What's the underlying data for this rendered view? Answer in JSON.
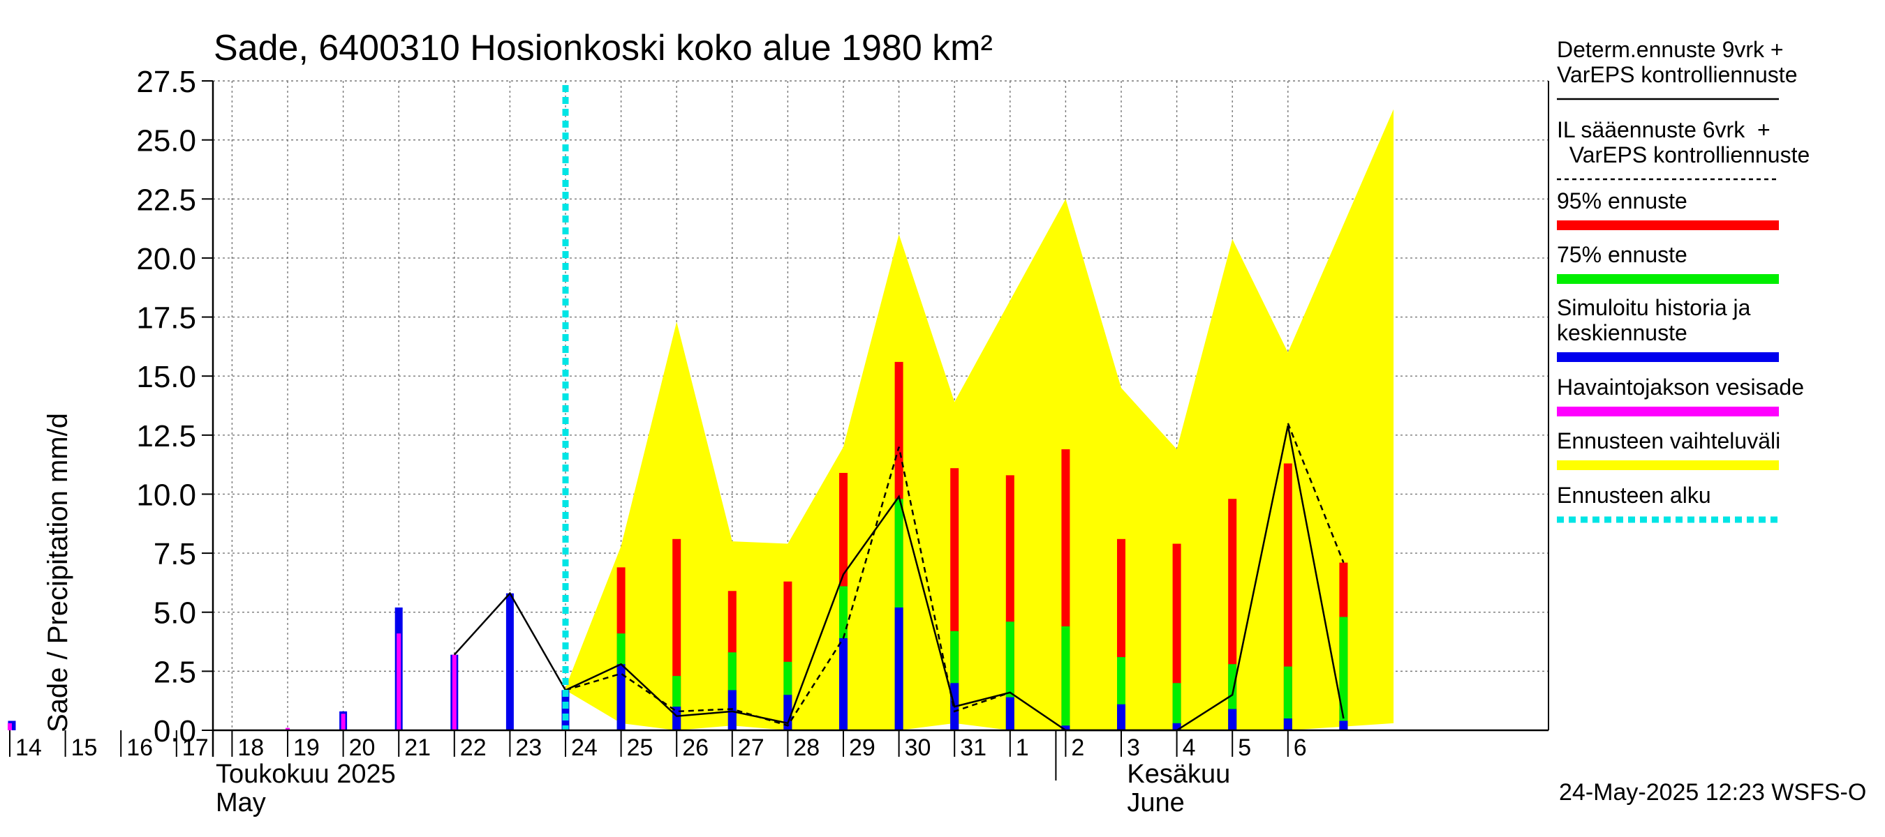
{
  "chart_data": {
    "type": "bar",
    "title": "Sade, 6400310 Hosionkoski koko alue 1980 km²",
    "ylabel": "Sade / Precipitation   mm/d",
    "ylim": [
      0,
      27.5
    ],
    "y_ticks": [
      "0.0",
      "2.5",
      "5.0",
      "7.5",
      "10.0",
      "12.5",
      "15.0",
      "17.5",
      "20.0",
      "22.5",
      "25.0",
      "27.5"
    ],
    "x_ticks": [
      "14",
      "15",
      "16",
      "17",
      "18",
      "19",
      "20",
      "21",
      "22",
      "23",
      "24",
      "25",
      "26",
      "27",
      "28",
      "29",
      "30",
      "31",
      "1",
      "2",
      "3",
      "4",
      "5",
      "6"
    ],
    "month_labels": [
      {
        "fi": "Toukokuu  2025",
        "en": "May",
        "at_day": 0
      },
      {
        "fi": "Kesäkuu",
        "en": "June",
        "at_day": 19
      }
    ],
    "grid": true,
    "forecast_start_day": 10,
    "timestamp": "24-May-2025 12:23 WSFS-O",
    "legend_position": "right",
    "legend": [
      {
        "label": "Determ.ennuste 9vrk +\nVarEPS kontrolliennuste",
        "color": "#000000",
        "style": "solid"
      },
      {
        "label": "IL sääennuste 6vrk  +\n  VarEPS kontrolliennuste",
        "color": "#000000",
        "style": "dashed"
      },
      {
        "label": "95% ennuste",
        "color": "#ff0000",
        "style": "thick"
      },
      {
        "label": "75% ennuste",
        "color": "#00ee00",
        "style": "thick"
      },
      {
        "label": "Simuloitu historia ja\nkeskiennuste",
        "color": "#0000ee",
        "style": "thick"
      },
      {
        "label": "Havaintojakson vesisade",
        "color": "#ff00ff",
        "style": "thick"
      },
      {
        "label": "Ennusteen vaihteluväli",
        "color": "#ffff00",
        "style": "thick"
      },
      {
        "label": "Ennusteen alku",
        "color": "#00e5e5",
        "style": "dotted"
      }
    ],
    "observed": {
      "name": "Havaintojakson vesisade",
      "color": "#ff00ff",
      "days": [
        0,
        5,
        6,
        7,
        8
      ],
      "values": [
        0.3,
        0.1,
        0.7,
        4.1,
        3.2
      ]
    },
    "simulated_history": {
      "name": "Simuloitu historia ja keskiennuste",
      "color": "#0000ee",
      "days": [
        0,
        6,
        7,
        8,
        9,
        10
      ],
      "values": [
        0.4,
        0.8,
        5.2,
        3.2,
        5.8,
        1.7
      ]
    },
    "forecast_range": {
      "name": "Ennusteen vaihteluväli",
      "color": "#ffff00",
      "days": [
        10,
        11,
        12,
        13,
        14,
        15,
        16,
        17,
        18,
        19,
        20,
        21,
        22,
        23,
        24.9
      ],
      "upper": [
        1.8,
        7.8,
        17.3,
        8.0,
        7.9,
        12.0,
        21.0,
        13.9,
        18.2,
        22.5,
        14.5,
        11.9,
        20.8,
        16.0,
        26.3
      ],
      "lower": [
        1.7,
        0.3,
        0.0,
        0.2,
        0.0,
        0.0,
        0.0,
        0.3,
        0.0,
        0.0,
        0.0,
        0.0,
        0.0,
        0.0,
        0.3
      ]
    },
    "forecast_bars": {
      "days": [
        11,
        12,
        13,
        14,
        15,
        16,
        17,
        18,
        19,
        20,
        21,
        22,
        23,
        24
      ],
      "p95": [
        6.9,
        8.1,
        5.9,
        6.3,
        10.9,
        15.6,
        11.1,
        10.8,
        11.9,
        8.1,
        7.9,
        9.8,
        11.3,
        7.1
      ],
      "p75": [
        4.1,
        2.3,
        3.3,
        2.9,
        6.1,
        9.8,
        4.2,
        4.6,
        4.4,
        3.1,
        2.0,
        2.8,
        2.7,
        4.8
      ],
      "mean": [
        2.8,
        1.0,
        1.7,
        1.5,
        3.9,
        5.2,
        2.0,
        1.4,
        0.2,
        1.1,
        0.3,
        0.9,
        0.5,
        0.4
      ]
    },
    "determ_forecast": {
      "name": "Determ.ennuste 9vrk + VarEPS kontrolliennuste",
      "days": [
        8,
        9,
        10,
        11,
        12,
        13,
        14,
        15,
        16,
        17,
        18,
        19,
        20,
        21,
        22,
        23,
        24
      ],
      "values": [
        3.2,
        5.8,
        1.7,
        2.8,
        0.6,
        0.8,
        0.3,
        6.6,
        9.9,
        1.0,
        1.6,
        0.0,
        0.0,
        0.0,
        1.5,
        12.9,
        0.5
      ]
    },
    "il_forecast": {
      "name": "IL sääennuste 6vrk + VarEPS kontrolliennuste",
      "days": [
        10,
        11,
        12,
        13,
        14,
        15,
        16,
        17,
        18
      ],
      "values": [
        1.7,
        2.4,
        0.8,
        0.9,
        0.2,
        3.9,
        12.0,
        0.8,
        1.6
      ],
      "tail_days": [
        23,
        24
      ],
      "tail_values": [
        13.0,
        7.1
      ]
    }
  }
}
